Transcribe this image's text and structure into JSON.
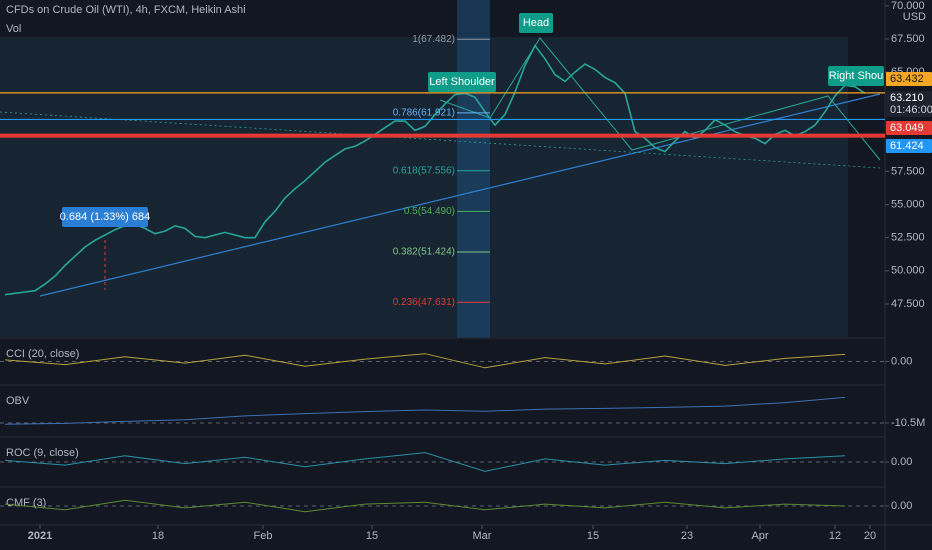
{
  "header": {
    "title": "CFDs on Crude Oil (WTI), 4h, FXCM, Heikin Ashi",
    "volume_label": "Vol",
    "currency": "USD"
  },
  "chart_data": [
    {
      "type": "line",
      "x": [
        0,
        1,
        2,
        3,
        4,
        5,
        6,
        7,
        8,
        9,
        10,
        11,
        12,
        13,
        14,
        15,
        16,
        17,
        18,
        19,
        20,
        21,
        22,
        23,
        24,
        25,
        26,
        27,
        28,
        29,
        30,
        31,
        32,
        33,
        34,
        35,
        36,
        37,
        38,
        39,
        40,
        41,
        42,
        43,
        44,
        45,
        46,
        47,
        48,
        49,
        50,
        51,
        52,
        53,
        54,
        55,
        56,
        57,
        58,
        59,
        60,
        61,
        62,
        63,
        64,
        65,
        66,
        67,
        68,
        69,
        70,
        71,
        72,
        73,
        74,
        75,
        76,
        77,
        78,
        79,
        80,
        81,
        82,
        83,
        84,
        85,
        86
      ],
      "series": [
        {
          "color": "#26a69a",
          "values": [
            48.2,
            48.3,
            48.4,
            48.5,
            49.0,
            49.6,
            50.4,
            51.1,
            51.8,
            52.3,
            52.7,
            53.1,
            53.4,
            53.5,
            53.2,
            52.8,
            53.0,
            53.4,
            53.2,
            52.6,
            52.5,
            52.7,
            52.9,
            52.7,
            52.5,
            52.5,
            53.7,
            54.5,
            55.5,
            56.2,
            56.8,
            57.5,
            58.2,
            58.7,
            59.2,
            59.4,
            59.8,
            60.3,
            60.8,
            61.3,
            61.3,
            60.6,
            60.9,
            61.8,
            62.6,
            63.3,
            63.4,
            63.1,
            62.0,
            61.0,
            61.8,
            63.5,
            65.5,
            67.0,
            66.0,
            64.8,
            64.3,
            65.0,
            65.6,
            65.2,
            64.6,
            64.2,
            63.4,
            60.5,
            60.0,
            59.3,
            59.0,
            59.8,
            60.5,
            60.0,
            60.6,
            61.4,
            61.0,
            60.5,
            60.2,
            60.0,
            59.6,
            60.3,
            60.6,
            60.2,
            60.5,
            61.0,
            62.0,
            63.2,
            64.0,
            63.9,
            63.4
          ]
        }
      ],
      "xlim": [
        -0.5,
        88
      ],
      "xticks": [
        {
          "value": 3.5,
          "label": "2021"
        },
        {
          "value": 15.3,
          "label": "18"
        },
        {
          "value": 25.8,
          "label": "Feb"
        },
        {
          "value": 36.7,
          "label": "15"
        },
        {
          "value": 47.7,
          "label": "Mar"
        },
        {
          "value": 58.8,
          "label": "15"
        },
        {
          "value": 68.2,
          "label": "23"
        },
        {
          "value": 75.5,
          "label": "Apr"
        },
        {
          "value": 83,
          "label": "12"
        },
        {
          "value": 86.5,
          "label": "20"
        }
      ],
      "ylim": [
        44.93,
        70.44
      ],
      "yticks": [
        {
          "value": 47.5,
          "label": "47.500"
        },
        {
          "value": 50,
          "label": "50.000"
        },
        {
          "value": 52.5,
          "label": "52.500"
        },
        {
          "value": 55,
          "label": "55.000"
        },
        {
          "value": 57.5,
          "label": "57.500"
        },
        {
          "value": 65,
          "label": "65.000"
        },
        {
          "value": 67.5,
          "label": "67.500"
        },
        {
          "value": 70,
          "label": "70.000"
        }
      ],
      "levels": [
        {
          "value": 63.432,
          "color": "#f5a623"
        },
        {
          "value": 61.424,
          "color": "#2196f3"
        },
        {
          "value": 60.2,
          "color": "#e53935"
        }
      ],
      "price_labels": [
        {
          "value": 63.432,
          "label": "63.432",
          "color": "#f5a623"
        },
        {
          "value": 63.21,
          "label": "63.210",
          "color": "#1e222d",
          "countdown": "01:46:00"
        },
        {
          "value": 63.049,
          "label": "63.049",
          "color": "#e53935"
        },
        {
          "value": 61.424,
          "label": "61.424",
          "color": "#2196f3"
        }
      ],
      "fib": [
        {
          "value": 67.482,
          "label": "1(67.482)",
          "color": "#9598a1"
        },
        {
          "value": 61.921,
          "label": "0.786(61.921)",
          "color": "#64b5f6"
        },
        {
          "value": 57.556,
          "label": "0.618(57.556)",
          "color": "#26a69a"
        },
        {
          "value": 54.49,
          "label": "0.5(54.490)",
          "color": "#4caf50"
        },
        {
          "value": 51.424,
          "label": "0.382(51.424)",
          "color": "#81c784"
        },
        {
          "value": 47.631,
          "label": "0.236(47.631)",
          "color": "#e53935"
        }
      ],
      "annotations": {
        "head": "Head",
        "left_shoulder": "Left Shoulder",
        "right_shoulder": "Right Shou",
        "measure": "0.684 (1.33%) 684"
      }
    },
    {
      "type": "line",
      "title": "CCI (20, close)",
      "x": [
        0,
        6,
        12,
        18,
        24,
        30,
        36,
        42,
        48,
        54,
        60,
        66,
        72,
        78,
        84
      ],
      "series": [
        {
          "color": "#b5a33a",
          "values": [
            20,
            -40,
            60,
            -20,
            80,
            -60,
            30,
            100,
            -80,
            50,
            -30,
            70,
            -50,
            40,
            90
          ]
        }
      ],
      "ylim": [
        -300,
        300
      ],
      "yticks": [
        {
          "value": 0,
          "label": "0.00"
        }
      ]
    },
    {
      "type": "line",
      "title": "OBV",
      "x": [
        0,
        6,
        12,
        18,
        24,
        30,
        36,
        42,
        48,
        54,
        60,
        66,
        72,
        78,
        84
      ],
      "series": [
        {
          "color": "#3f6fb5",
          "values": [
            -10900000,
            -10600000,
            -10000000,
            -9500000,
            -8300000,
            -7600000,
            -7000000,
            -6500000,
            -6900000,
            -6200000,
            -6000000,
            -5700000,
            -5300000,
            -4200000,
            -2600000
          ]
        }
      ],
      "ylim": [
        -14800000,
        1200000
      ],
      "yticks": [
        {
          "value": -10500000,
          "label": "-10.5M"
        }
      ]
    },
    {
      "type": "line",
      "title": "ROC (9, close)",
      "x": [
        0,
        6,
        12,
        18,
        24,
        30,
        36,
        42,
        48,
        54,
        60,
        66,
        72,
        78,
        84
      ],
      "series": [
        {
          "color": "#2a8fa8",
          "values": [
            0.5,
            -1,
            2,
            -0.5,
            1.5,
            -1.5,
            1,
            3,
            -3,
            1,
            -1,
            0.5,
            -0.5,
            1,
            2
          ]
        }
      ],
      "ylim": [
        -8,
        8
      ],
      "yticks": [
        {
          "value": 0,
          "label": "0.00"
        }
      ]
    },
    {
      "type": "line",
      "title": "CMF (3)",
      "x": [
        0,
        6,
        12,
        18,
        24,
        30,
        36,
        42,
        48,
        54,
        60,
        66,
        72,
        78,
        84
      ],
      "series": [
        {
          "color": "#5c8a2e",
          "values": [
            0.1,
            -0.2,
            0.3,
            -0.1,
            0.2,
            -0.3,
            0.1,
            0.2,
            -0.2,
            0.1,
            -0.1,
            0.2,
            -0.1,
            0.1,
            0.0
          ]
        }
      ],
      "ylim": [
        -1,
        1
      ],
      "yticks": [
        {
          "value": 0,
          "label": "0.00"
        }
      ]
    }
  ]
}
